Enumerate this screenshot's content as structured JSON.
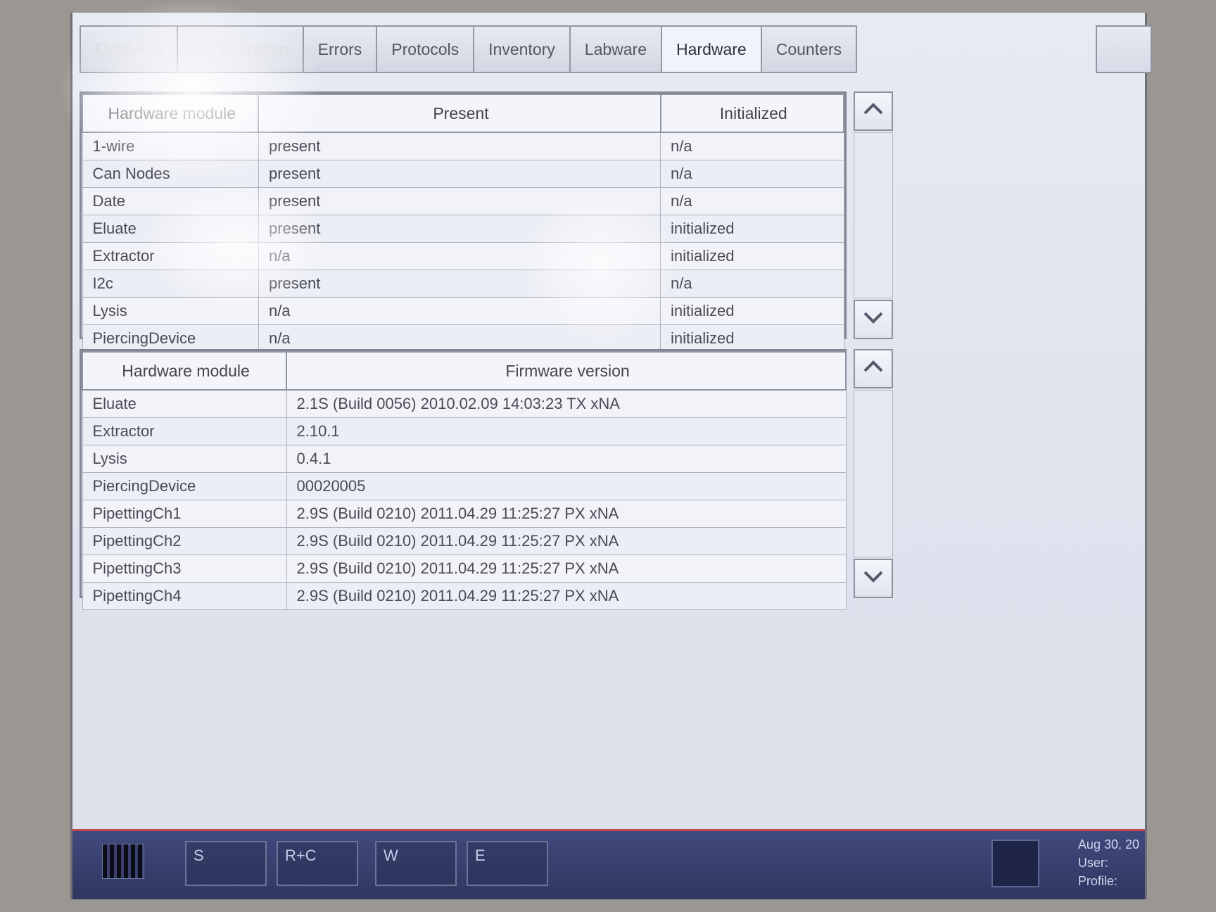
{
  "tabs": {
    "overview": "Overview",
    "configuration": "Configuration",
    "errors": "Errors",
    "protocols": "Protocols",
    "inventory": "Inventory",
    "labware": "Labware",
    "hardware": "Hardware",
    "counters": "Counters"
  },
  "hwStatus": {
    "columns": {
      "module": "Hardware module",
      "present": "Present",
      "initialized": "Initialized"
    },
    "rows": [
      {
        "module": "1-wire",
        "present": "present",
        "initialized": "n/a"
      },
      {
        "module": "Can Nodes",
        "present": "present",
        "initialized": "n/a"
      },
      {
        "module": "Date",
        "present": "present",
        "initialized": "n/a"
      },
      {
        "module": "Eluate",
        "present": "present",
        "initialized": "initialized"
      },
      {
        "module": "Extractor",
        "present": "n/a",
        "initialized": "initialized"
      },
      {
        "module": "I2c",
        "present": "present",
        "initialized": "n/a"
      },
      {
        "module": "Lysis",
        "present": "n/a",
        "initialized": "initialized"
      },
      {
        "module": "PiercingDevice",
        "present": "n/a",
        "initialized": "initialized"
      }
    ]
  },
  "firmware": {
    "columns": {
      "module": "Hardware module",
      "fw": "Firmware version"
    },
    "rows": [
      {
        "module": "Eluate",
        "fw": "2.1S (Build 0056) 2010.02.09 14:03:23 TX xNA"
      },
      {
        "module": "Extractor",
        "fw": "2.10.1"
      },
      {
        "module": "Lysis",
        "fw": "0.4.1"
      },
      {
        "module": "PiercingDevice",
        "fw": "00020005"
      },
      {
        "module": "PipettingCh1",
        "fw": "2.9S (Build 0210) 2011.04.29 11:25:27 PX xNA"
      },
      {
        "module": "PipettingCh2",
        "fw": "2.9S (Build 0210) 2011.04.29 11:25:27 PX xNA"
      },
      {
        "module": "PipettingCh3",
        "fw": "2.9S (Build 0210) 2011.04.29 11:25:27 PX xNA"
      },
      {
        "module": "PipettingCh4",
        "fw": "2.9S (Build 0210) 2011.04.29 11:25:27 PX xNA"
      }
    ]
  },
  "drawers": {
    "s": "S",
    "rc": "R+C",
    "w": "W",
    "e": "E"
  },
  "status": {
    "dateLabel": "Aug 30, 20",
    "userLabel": "User:",
    "profileLabel": "Profile:"
  },
  "style": {
    "accent": "#404a7c",
    "borderDark": "#838594",
    "headerBg": "#f3f5fb",
    "rowBg": "#f1f3f9"
  }
}
